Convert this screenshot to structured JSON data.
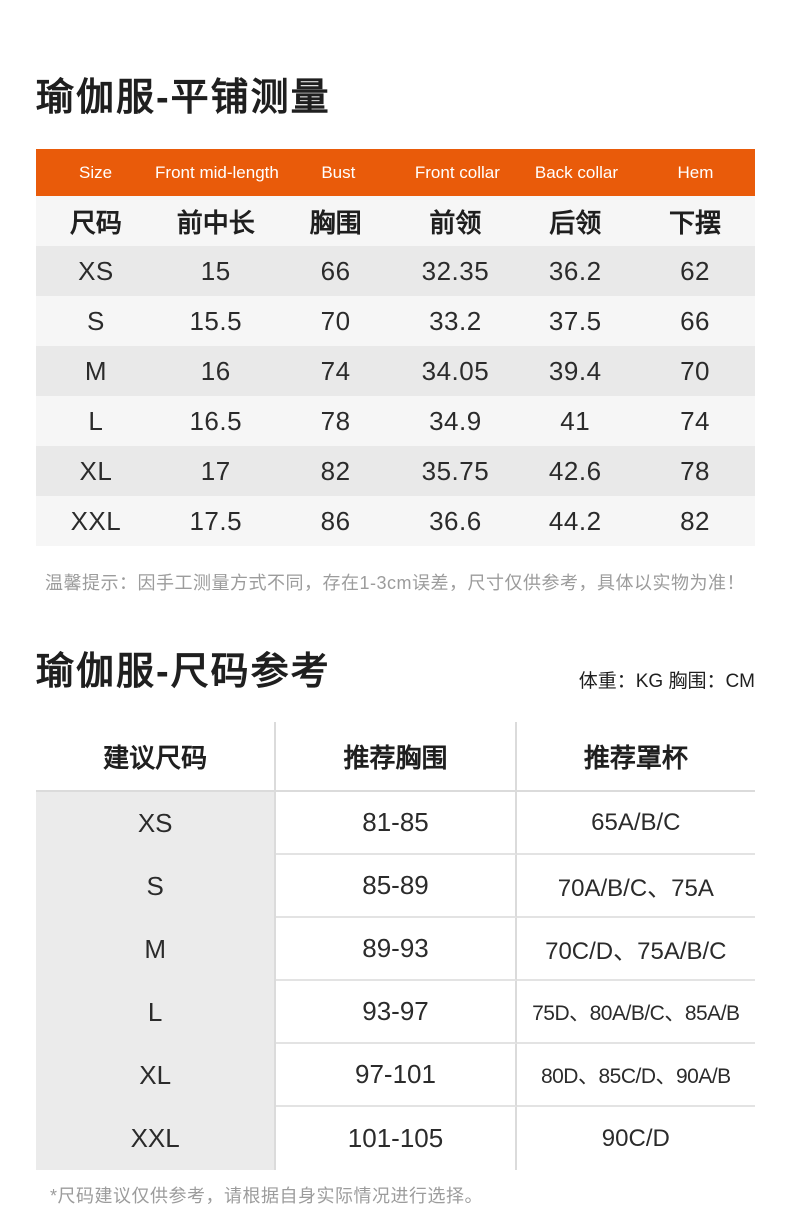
{
  "colors": {
    "accent_orange": "#E95B0A",
    "row_dark": "#E9E9E9",
    "row_light": "#F6F6F6",
    "table2_size_col_bg": "#EBEBEB",
    "divider": "#DBDBDB",
    "muted_text": "#9C9C9C",
    "body_text": "#2B2B2B"
  },
  "section1": {
    "title": "瑜伽服-平铺测量",
    "table": {
      "header_en": [
        "Size",
        "Front mid-length",
        "Bust",
        "Front collar",
        "Back collar",
        "Hem"
      ],
      "header_zh": [
        "尺码",
        "前中长",
        "胸围",
        "前领",
        "后领",
        "下摆"
      ],
      "rows": [
        [
          "XS",
          "15",
          "66",
          "32.35",
          "36.2",
          "62"
        ],
        [
          "S",
          "15.5",
          "70",
          "33.2",
          "37.5",
          "66"
        ],
        [
          "M",
          "16",
          "74",
          "34.05",
          "39.4",
          "70"
        ],
        [
          "L",
          "16.5",
          "78",
          "34.9",
          "41",
          "74"
        ],
        [
          "XL",
          "17",
          "82",
          "35.75",
          "42.6",
          "78"
        ],
        [
          "XXL",
          "17.5",
          "86",
          "36.6",
          "44.2",
          "82"
        ]
      ]
    },
    "tip": "温馨提示：因手工测量方式不同，存在1-3cm误差，尺寸仅供参考，具体以实物为准！"
  },
  "section2": {
    "title": "瑜伽服-尺码参考",
    "unit_note": "体重：KG 胸围：CM",
    "table": {
      "headers": [
        "建议尺码",
        "推荐胸围",
        "推荐罩杯"
      ],
      "rows": [
        [
          "XS",
          "81-85",
          "65A/B/C"
        ],
        [
          "S",
          "85-89",
          "70A/B/C、75A"
        ],
        [
          "M",
          "89-93",
          "70C/D、75A/B/C"
        ],
        [
          "L",
          "93-97",
          "75D、80A/B/C、85A/B"
        ],
        [
          "XL",
          "97-101",
          "80D、85C/D、90A/B"
        ],
        [
          "XXL",
          "101-105",
          "90C/D"
        ]
      ]
    },
    "footnote": "*尺码建议仅供参考，请根据自身实际情况进行选择。"
  }
}
